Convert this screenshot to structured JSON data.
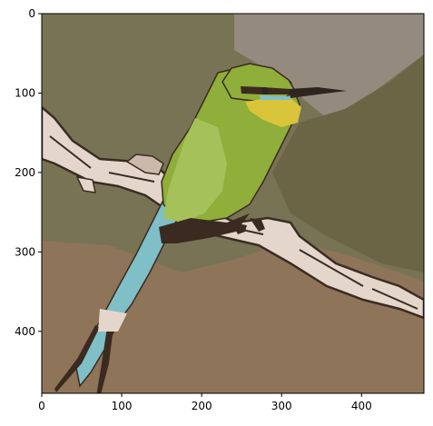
{
  "figure": {
    "x_ticks": [
      "0",
      "100",
      "200",
      "300",
      "400"
    ],
    "y_ticks": [
      "0",
      "100",
      "200",
      "300",
      "400"
    ],
    "x_tick_values": [
      0,
      100,
      200,
      300,
      400
    ],
    "y_tick_values": [
      0,
      100,
      200,
      300,
      400
    ],
    "image_extent": {
      "width": 478,
      "height": 478
    },
    "subject": "posterized photo of a green bee-eater bird perched on a branch"
  },
  "palette": {
    "bg_olive": "#787355",
    "bg_olive_dark": "#6b6445",
    "bg_brown": "#8e7458",
    "sky_grey": "#958a7e",
    "branch_light": "#e5d6cc",
    "branch_dark": "#3a2c22",
    "bird_green": "#8fae3a",
    "bird_green_light": "#a5c25a",
    "bird_yellow": "#d9c43a",
    "bird_blue": "#7fbfc8",
    "bird_dark": "#3b2a20",
    "beak_dark": "#2f2520"
  }
}
